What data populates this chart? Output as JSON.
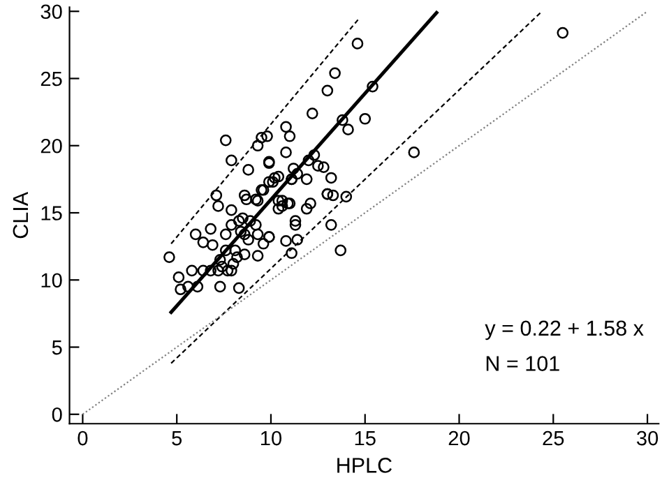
{
  "chart_data": {
    "type": "scatter",
    "xlabel": "HPLC",
    "ylabel": "CLIA",
    "xlim": [
      -0.7,
      30.6
    ],
    "ylim": [
      -0.7,
      30.3
    ],
    "xticks": [
      0,
      5,
      10,
      15,
      20,
      25,
      30
    ],
    "yticks": [
      0,
      5,
      10,
      15,
      20,
      25,
      30
    ],
    "grid": false,
    "legend": false,
    "annotations": [
      "y = 0.22 + 1.58 x",
      "N = 101"
    ],
    "series": [
      {
        "marker": "circle",
        "color": "#000000",
        "x": [
          4.6,
          5.1,
          5.2,
          5.6,
          5.8,
          6.1,
          6.0,
          6.4,
          6.8,
          7.3,
          7.6,
          7.9,
          7.1,
          7.2,
          7.9,
          8.6,
          8.7,
          9.2,
          9.6,
          9.9,
          10.2,
          10.6,
          10.9,
          7.6,
          7.9,
          9.5,
          9.8,
          10.8,
          11.0,
          8.8,
          9.9,
          10.8,
          8.3,
          8.5,
          8.9,
          9.2,
          8.8,
          9.3,
          9.6,
          9.9,
          8.6,
          8.0,
          7.9,
          7.3,
          7.6,
          8.1,
          8.2,
          8.6,
          7.7,
          7.2,
          6.8,
          6.4,
          9.3,
          11.3,
          9.3,
          9.5,
          9.9,
          10.1,
          10.4,
          10.6,
          11.0,
          11.1,
          11.2,
          11.4,
          11.9,
          12.0,
          12.3,
          12.5,
          12.8,
          13.0,
          13.2,
          13.0,
          13.4,
          14.0,
          13.2,
          13.7,
          11.3,
          11.4,
          11.1,
          12.1,
          11.9,
          12.2,
          13.0,
          13.3,
          14.6,
          15.4,
          13.8,
          15.0,
          14.1,
          17.6,
          25.5,
          11.1,
          10.4,
          9.3,
          9.9,
          10.8,
          10.4,
          7.4,
          8.3,
          8.4,
          6.9
        ],
        "values": [
          11.7,
          10.2,
          9.3,
          9.5,
          10.7,
          9.5,
          13.4,
          12.8,
          13.8,
          9.5,
          13.4,
          14.1,
          16.3,
          15.5,
          15.2,
          16.3,
          16.0,
          16.0,
          16.7,
          17.3,
          17.6,
          15.9,
          15.7,
          20.4,
          18.9,
          20.6,
          20.7,
          21.4,
          20.7,
          18.2,
          18.7,
          19.5,
          14.4,
          14.6,
          14.4,
          14.1,
          13.0,
          13.4,
          12.7,
          13.2,
          13.4,
          11.2,
          10.7,
          11.5,
          12.2,
          12.2,
          11.7,
          11.9,
          10.7,
          10.7,
          10.7,
          10.7,
          11.8,
          14.1,
          15.9,
          16.7,
          18.8,
          17.3,
          17.7,
          15.5,
          15.7,
          17.5,
          18.3,
          17.9,
          17.5,
          18.9,
          19.3,
          18.5,
          18.4,
          16.4,
          17.6,
          24.1,
          25.4,
          16.2,
          14.1,
          12.2,
          14.4,
          13.0,
          12.0,
          15.7,
          15.3,
          22.4,
          16.4,
          16.3,
          27.6,
          24.4,
          21.9,
          22.0,
          21.2,
          19.5,
          28.4,
          17.5,
          15.9,
          20.0,
          13.2,
          12.9,
          15.3,
          11.0,
          9.4,
          13.6,
          12.6
        ]
      },
      {
        "type": "line",
        "color": "#000000",
        "line_style": "solid",
        "marker": "none",
        "x": [
          4.7,
          18.8
        ],
        "values": [
          7.6,
          29.9
        ]
      },
      {
        "type": "line",
        "color": "#000000",
        "line_style": "dashed",
        "marker": "none",
        "x": [
          4.7,
          14.7
        ],
        "values": [
          12.7,
          29.5
        ]
      },
      {
        "type": "line",
        "color": "#000000",
        "line_style": "dashed",
        "marker": "none",
        "x": [
          4.7,
          24.4
        ],
        "values": [
          3.8,
          30.0
        ]
      },
      {
        "type": "line",
        "color": "#808080",
        "line_style": "dotted",
        "marker": "none",
        "x": [
          0,
          30
        ],
        "values": [
          0,
          30
        ]
      }
    ]
  }
}
